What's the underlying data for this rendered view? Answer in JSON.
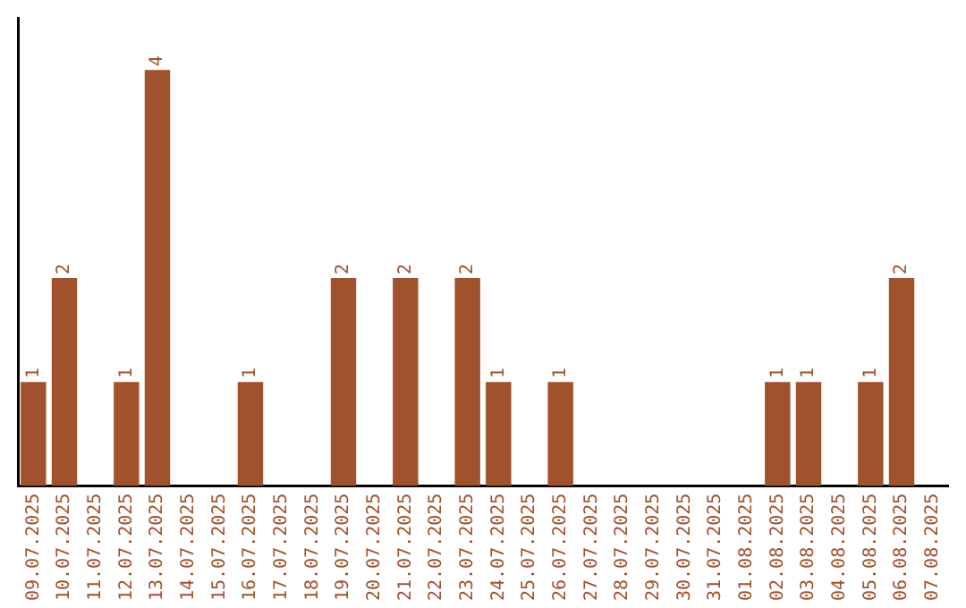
{
  "chart_data": {
    "type": "bar",
    "categories": [
      "09.07.2025",
      "10.07.2025",
      "11.07.2025",
      "12.07.2025",
      "13.07.2025",
      "14.07.2025",
      "15.07.2025",
      "16.07.2025",
      "17.07.2025",
      "18.07.2025",
      "19.07.2025",
      "20.07.2025",
      "21.07.2025",
      "22.07.2025",
      "23.07.2025",
      "24.07.2025",
      "25.07.2025",
      "26.07.2025",
      "27.07.2025",
      "28.07.2025",
      "29.07.2025",
      "30.07.2025",
      "31.07.2025",
      "01.08.2025",
      "02.08.2025",
      "03.08.2025",
      "04.08.2025",
      "05.08.2025",
      "06.08.2025",
      "07.08.2025"
    ],
    "values": [
      1,
      2,
      0,
      1,
      4,
      0,
      0,
      1,
      0,
      0,
      2,
      0,
      2,
      0,
      2,
      1,
      0,
      1,
      0,
      0,
      0,
      0,
      0,
      0,
      1,
      1,
      0,
      1,
      2,
      0
    ],
    "value_labels": [
      "1",
      "2",
      null,
      "1",
      "4",
      null,
      null,
      "1",
      null,
      null,
      "2",
      null,
      "2",
      null,
      "2",
      "1",
      null,
      "1",
      null,
      null,
      null,
      null,
      null,
      null,
      "1",
      "1",
      null,
      "1",
      "2",
      null
    ],
    "color": "#a0522d",
    "grid": false,
    "legend": false,
    "tick_labels": "x"
  }
}
